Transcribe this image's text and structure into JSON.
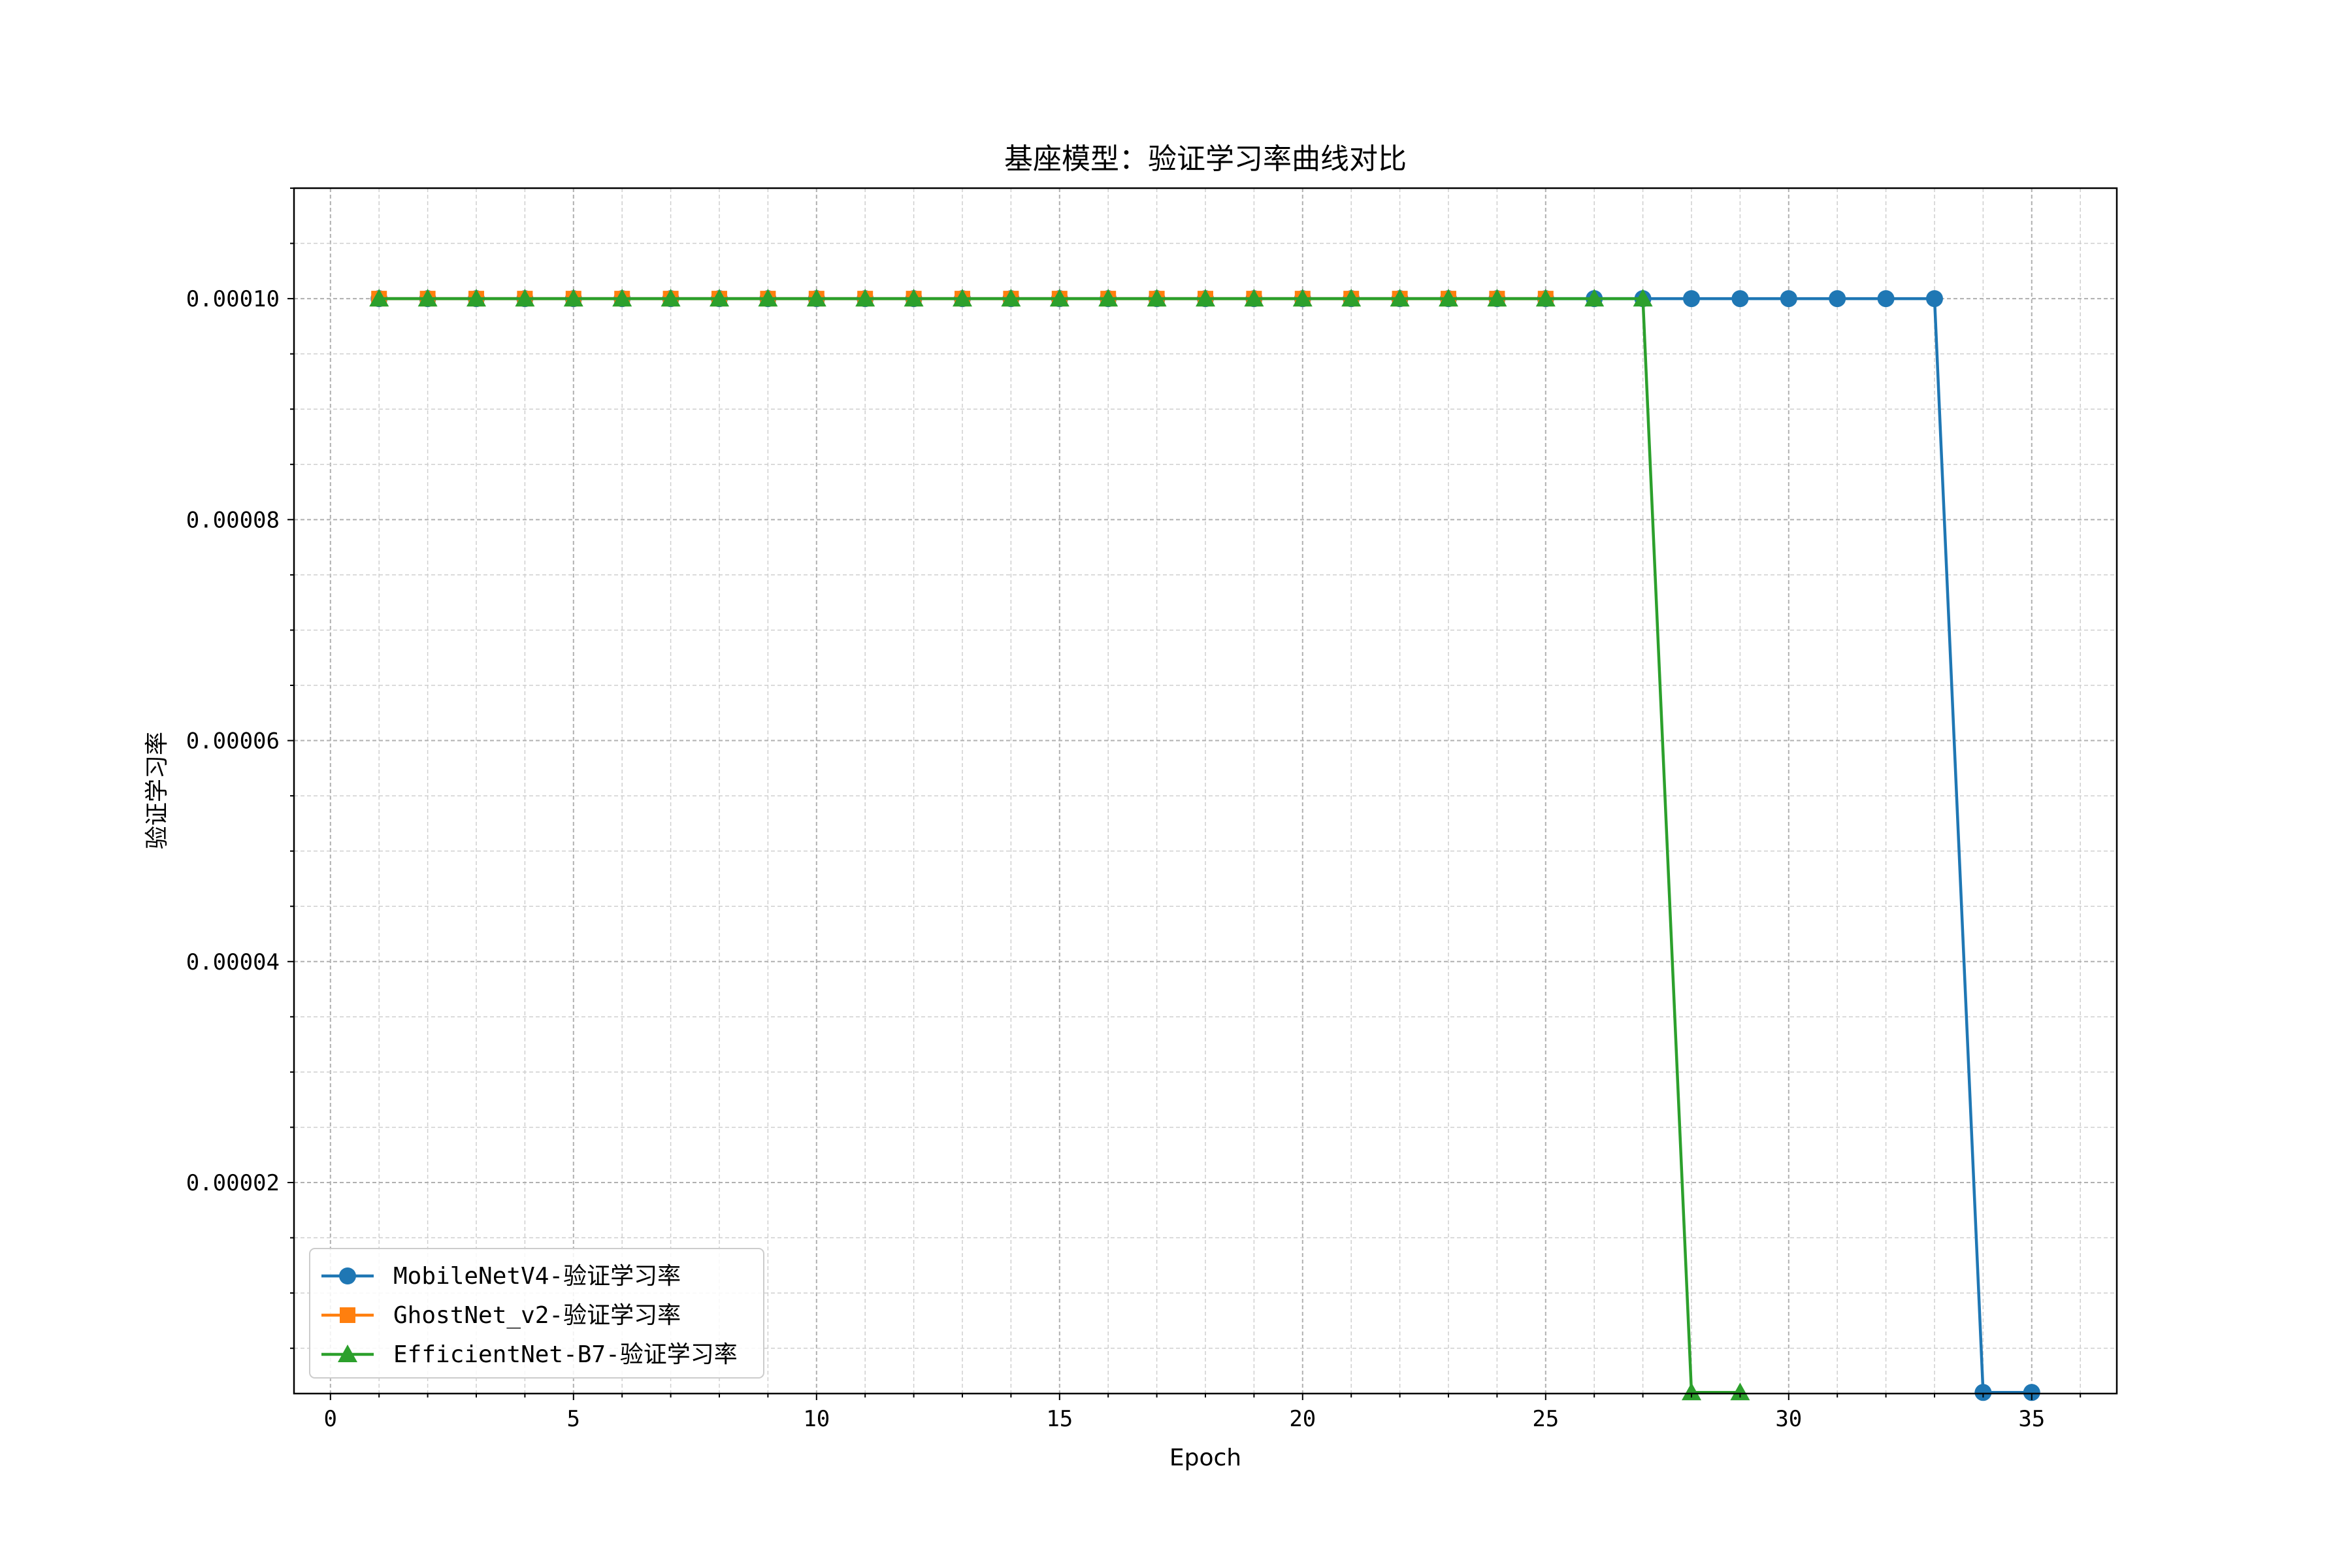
{
  "chart_data": {
    "type": "line",
    "title": "基座模型：验证学习率曲线对比",
    "xlabel": "Epoch",
    "ylabel": "验证学习率",
    "xlim": [
      -0.75,
      36.75
    ],
    "ylim": [
      9e-07,
      0.00011
    ],
    "x_ticks": [
      0,
      5,
      10,
      15,
      20,
      25,
      30,
      35
    ],
    "x_tick_labels": [
      "0",
      "5",
      "10",
      "15",
      "20",
      "25",
      "30",
      "35"
    ],
    "y_ticks": [
      2e-05,
      4e-05,
      6e-05,
      8e-05,
      0.0001
    ],
    "y_tick_labels": [
      "0.00002",
      "0.00004",
      "0.00006",
      "0.00008",
      "0.00010"
    ],
    "grid": true,
    "legend_position": "bottom-left",
    "series": [
      {
        "name": "MobileNetV4-验证学习率",
        "color": "#1f77b4",
        "marker": "circle",
        "x": [
          1,
          2,
          3,
          4,
          5,
          6,
          7,
          8,
          9,
          10,
          11,
          12,
          13,
          14,
          15,
          16,
          17,
          18,
          19,
          20,
          21,
          22,
          23,
          24,
          25,
          26,
          27,
          28,
          29,
          30,
          31,
          32,
          33,
          34,
          35
        ],
        "y": [
          0.0001,
          0.0001,
          0.0001,
          0.0001,
          0.0001,
          0.0001,
          0.0001,
          0.0001,
          0.0001,
          0.0001,
          0.0001,
          0.0001,
          0.0001,
          0.0001,
          0.0001,
          0.0001,
          0.0001,
          0.0001,
          0.0001,
          0.0001,
          0.0001,
          0.0001,
          0.0001,
          0.0001,
          0.0001,
          0.0001,
          0.0001,
          0.0001,
          0.0001,
          0.0001,
          0.0001,
          0.0001,
          0.0001,
          1e-06,
          1e-06
        ]
      },
      {
        "name": "GhostNet_v2-验证学习率",
        "color": "#ff7f0e",
        "marker": "square",
        "x": [
          1,
          2,
          3,
          4,
          5,
          6,
          7,
          8,
          9,
          10,
          11,
          12,
          13,
          14,
          15,
          16,
          17,
          18,
          19,
          20,
          21,
          22,
          23,
          24,
          25
        ],
        "y": [
          0.0001,
          0.0001,
          0.0001,
          0.0001,
          0.0001,
          0.0001,
          0.0001,
          0.0001,
          0.0001,
          0.0001,
          0.0001,
          0.0001,
          0.0001,
          0.0001,
          0.0001,
          0.0001,
          0.0001,
          0.0001,
          0.0001,
          0.0001,
          0.0001,
          0.0001,
          0.0001,
          0.0001,
          0.0001
        ]
      },
      {
        "name": "EfficientNet-B7-验证学习率",
        "color": "#2ca02c",
        "marker": "triangle",
        "x": [
          1,
          2,
          3,
          4,
          5,
          6,
          7,
          8,
          9,
          10,
          11,
          12,
          13,
          14,
          15,
          16,
          17,
          18,
          19,
          20,
          21,
          22,
          23,
          24,
          25,
          26,
          27,
          28,
          29
        ],
        "y": [
          0.0001,
          0.0001,
          0.0001,
          0.0001,
          0.0001,
          0.0001,
          0.0001,
          0.0001,
          0.0001,
          0.0001,
          0.0001,
          0.0001,
          0.0001,
          0.0001,
          0.0001,
          0.0001,
          0.0001,
          0.0001,
          0.0001,
          0.0001,
          0.0001,
          0.0001,
          0.0001,
          0.0001,
          0.0001,
          0.0001,
          0.0001,
          1e-06,
          1e-06
        ]
      }
    ]
  }
}
